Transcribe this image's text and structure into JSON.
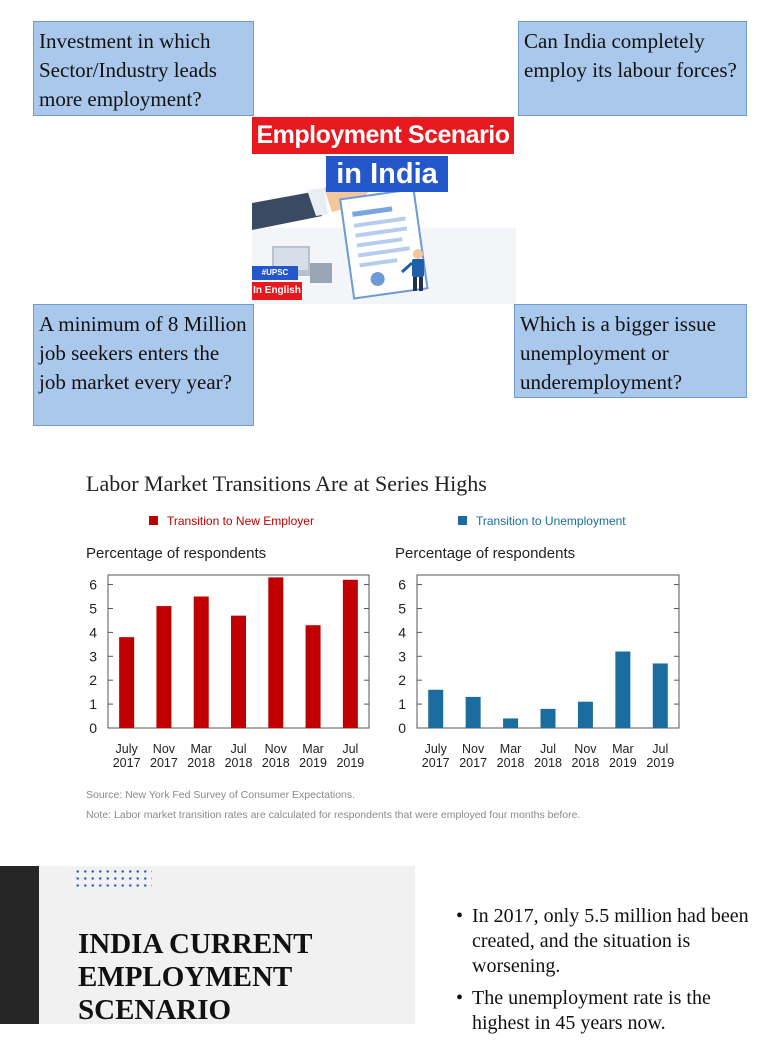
{
  "questions": {
    "top_left": "Investment in which Sector/Industry leads more employment?",
    "top_right": "Can India completely employ its labour forces?",
    "bottom_left": "A minimum of 8 Million job seekers enters the job market every year?",
    "bottom_right": "Which is a bigger issue unemployment or underemployment?"
  },
  "thumbnail": {
    "title_line1": "Employment Scenario",
    "title_line2": "in India",
    "tag1": "#UPSC #IAS",
    "tag2": "In English",
    "colors": {
      "red": "#e8191e",
      "blue": "#2457c9"
    }
  },
  "chart_header": {
    "title": "Labor Market Transitions Are at Series Highs"
  },
  "chart_data": [
    {
      "type": "bar",
      "ylabel": "Percentage of respondents",
      "ylim": [
        0,
        6.4
      ],
      "yticks": [
        "0",
        "1",
        "2",
        "3",
        "4",
        "5",
        "6"
      ],
      "categories": [
        [
          "July",
          "2017"
        ],
        [
          "Nov",
          "2017"
        ],
        [
          "Mar",
          "2018"
        ],
        [
          "Jul",
          "2018"
        ],
        [
          "Nov",
          "2018"
        ],
        [
          "Mar",
          "2019"
        ],
        [
          "Jul",
          "2019"
        ]
      ],
      "series": [
        {
          "name": "Transition to New Employer",
          "color": "#c00000",
          "values": [
            3.8,
            5.1,
            5.5,
            4.7,
            6.3,
            4.3,
            6.2
          ]
        }
      ],
      "grid": false
    },
    {
      "type": "bar",
      "ylabel": "Percentage of respondents",
      "ylim": [
        0,
        6.4
      ],
      "yticks": [
        "0",
        "1",
        "2",
        "3",
        "4",
        "5",
        "6"
      ],
      "categories": [
        [
          "July",
          "2017"
        ],
        [
          "Nov",
          "2017"
        ],
        [
          "Mar",
          "2018"
        ],
        [
          "Jul",
          "2018"
        ],
        [
          "Nov",
          "2018"
        ],
        [
          "Mar",
          "2019"
        ],
        [
          "Jul",
          "2019"
        ]
      ],
      "series": [
        {
          "name": "Transition to Unemployment",
          "color": "#1a6d9e",
          "values": [
            1.6,
            1.3,
            0.4,
            0.8,
            1.1,
            3.2,
            2.7
          ]
        }
      ],
      "grid": false
    }
  ],
  "chart_notes": {
    "source": "Source:  New York Fed Survey of Consumer Expectations.",
    "note": "Note: Labor market transition rates are calculated for respondents that were employed four months before."
  },
  "section": {
    "title_line1": "INDIA CURRENT",
    "title_line2": "EMPLOYMENT",
    "title_line3": "SCENARIO",
    "bullets": [
      "In 2017, only 5.5 million had been created, and the situation is worsening.",
      "The unemployment rate is the highest in 45 years now."
    ]
  }
}
